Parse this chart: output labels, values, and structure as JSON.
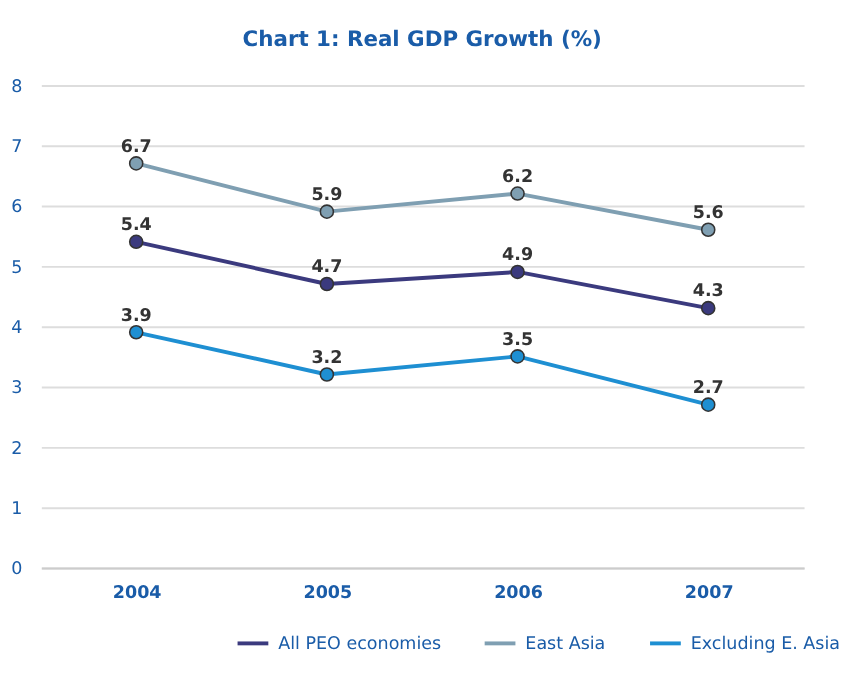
{
  "chart_data": {
    "type": "line",
    "title": "Chart 1: Real GDP Growth (%)",
    "categories": [
      "2004",
      "2005",
      "2006",
      "2007"
    ],
    "series": [
      {
        "name": "All PEO economies",
        "color": "#3b3a7e",
        "values": [
          5.4,
          4.7,
          4.9,
          4.3
        ]
      },
      {
        "name": "East Asia",
        "color": "#7f9fb2",
        "values": [
          6.7,
          5.9,
          6.2,
          5.6
        ]
      },
      {
        "name": "Excluding E. Asia",
        "color": "#1e8fd2",
        "values": [
          3.9,
          3.2,
          3.5,
          2.7
        ]
      }
    ],
    "ylim": [
      0,
      8
    ],
    "yticks": [
      0,
      1,
      2,
      3,
      4,
      5,
      6,
      7,
      8
    ],
    "grid": "y",
    "legend": "bottom right",
    "marker": "circle",
    "line_style": "solid",
    "data_labels": true
  }
}
